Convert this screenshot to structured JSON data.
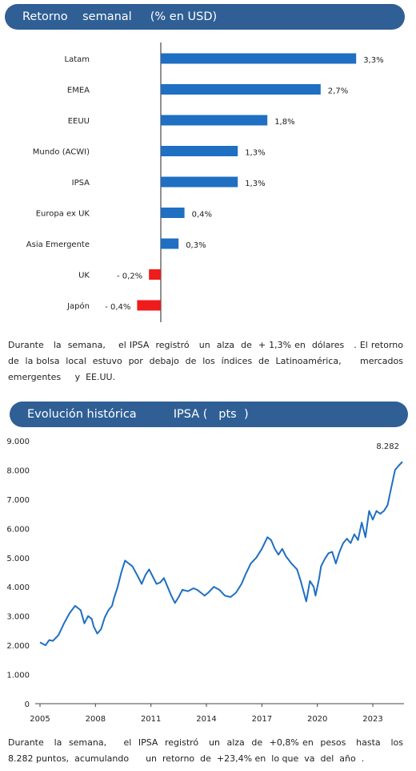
{
  "section1": {
    "title": "Retorno    semanal     (% en USD)",
    "paragraph": "Durante   la  semana,    el IPSA  registró   un  alza  de  + 1,3% en  dólares   . El retorno   de  la bolsa  local  estuvo  por  debajo  de  los  índices  de  Latinoamérica,      mercados emergentes     y  EE.UU."
  },
  "section2": {
    "title": "Evolución histórica          IPSA (   pts  )",
    "paragraph": "Durante   la  semana,     el  IPSA  registró   un  alza  de  +0,8% en  pesos   hasta   los  8.282 puntos,  acumulando      un  retorno  de  +23,4% en  lo que  va  del  año  ."
  },
  "colors": {
    "positive": "#1f6fc2",
    "negative": "#ee1c1c",
    "line": "#1f6fc2",
    "banner": "#2f5f95"
  },
  "chart_data": [
    {
      "type": "bar",
      "orientation": "horizontal",
      "unit": "%",
      "categories": [
        "Latam",
        "EMEA",
        "EEUU",
        "Mundo (ACWI)",
        "IPSA",
        "Europa ex UK",
        "Asia Emergente",
        "UK",
        "Japón"
      ],
      "values": [
        3.3,
        2.7,
        1.8,
        1.3,
        1.3,
        0.4,
        0.3,
        -0.2,
        -0.4
      ],
      "value_labels": [
        "3,3%",
        "2,7%",
        "1,8%",
        "1,3%",
        "1,3%",
        "0,4%",
        "0,3%",
        "- 0,2%",
        "- 0,4%"
      ],
      "xlim": [
        -0.4,
        3.3
      ]
    },
    {
      "type": "line",
      "ylim": [
        0,
        9000
      ],
      "xlim": [
        2005,
        2024.6
      ],
      "y_ticks": [
        "0",
        "1.000",
        "2.000",
        "3.000",
        "4.000",
        "5.000",
        "6.000",
        "7.000",
        "8.000",
        "9.000"
      ],
      "x_ticks": [
        "2005",
        "2008",
        "2011",
        "2014",
        "2017",
        "2020",
        "2023"
      ],
      "end_label": "8.282",
      "x": [
        2005.0,
        2005.3,
        2005.5,
        2005.7,
        2006.0,
        2006.3,
        2006.6,
        2006.9,
        2007.2,
        2007.4,
        2007.6,
        2007.8,
        2007.9,
        2008.1,
        2008.3,
        2008.5,
        2008.7,
        2008.9,
        2009.0,
        2009.2,
        2009.4,
        2009.6,
        2009.8,
        2010.0,
        2010.3,
        2010.5,
        2010.7,
        2010.9,
        2011.1,
        2011.3,
        2011.5,
        2011.7,
        2011.9,
        2012.1,
        2012.3,
        2012.5,
        2012.7,
        2013.0,
        2013.3,
        2013.5,
        2013.7,
        2013.9,
        2014.1,
        2014.4,
        2014.7,
        2015.0,
        2015.3,
        2015.6,
        2015.9,
        2016.1,
        2016.4,
        2016.7,
        2017.0,
        2017.3,
        2017.5,
        2017.7,
        2017.9,
        2018.1,
        2018.3,
        2018.6,
        2018.9,
        2019.1,
        2019.4,
        2019.6,
        2019.8,
        2019.9,
        2020.1,
        2020.2,
        2020.4,
        2020.6,
        2020.8,
        2021.0,
        2021.2,
        2021.4,
        2021.6,
        2021.8,
        2022.0,
        2022.2,
        2022.4,
        2022.6,
        2022.8,
        2023.0,
        2023.2,
        2023.4,
        2023.6,
        2023.8,
        2024.0,
        2024.2,
        2024.4,
        2024.6
      ],
      "values": [
        2100,
        2000,
        2180,
        2150,
        2350,
        2750,
        3100,
        3350,
        3200,
        2750,
        3000,
        2900,
        2650,
        2400,
        2550,
        2950,
        3200,
        3350,
        3600,
        4000,
        4500,
        4900,
        4800,
        4700,
        4350,
        4100,
        4400,
        4600,
        4350,
        4100,
        4150,
        4300,
        4000,
        3700,
        3450,
        3650,
        3900,
        3850,
        3950,
        3900,
        3800,
        3700,
        3800,
        4000,
        3900,
        3700,
        3650,
        3800,
        4100,
        4400,
        4800,
        5000,
        5300,
        5700,
        5600,
        5300,
        5100,
        5300,
        5050,
        4800,
        4600,
        4200,
        3500,
        4200,
        4000,
        3700,
        4300,
        4700,
        4950,
        5150,
        5200,
        4800,
        5200,
        5500,
        5650,
        5500,
        5800,
        5600,
        6200,
        5700,
        6600,
        6300,
        6600,
        6500,
        6600,
        6800,
        7400,
        8000,
        8150,
        8282
      ]
    }
  ]
}
